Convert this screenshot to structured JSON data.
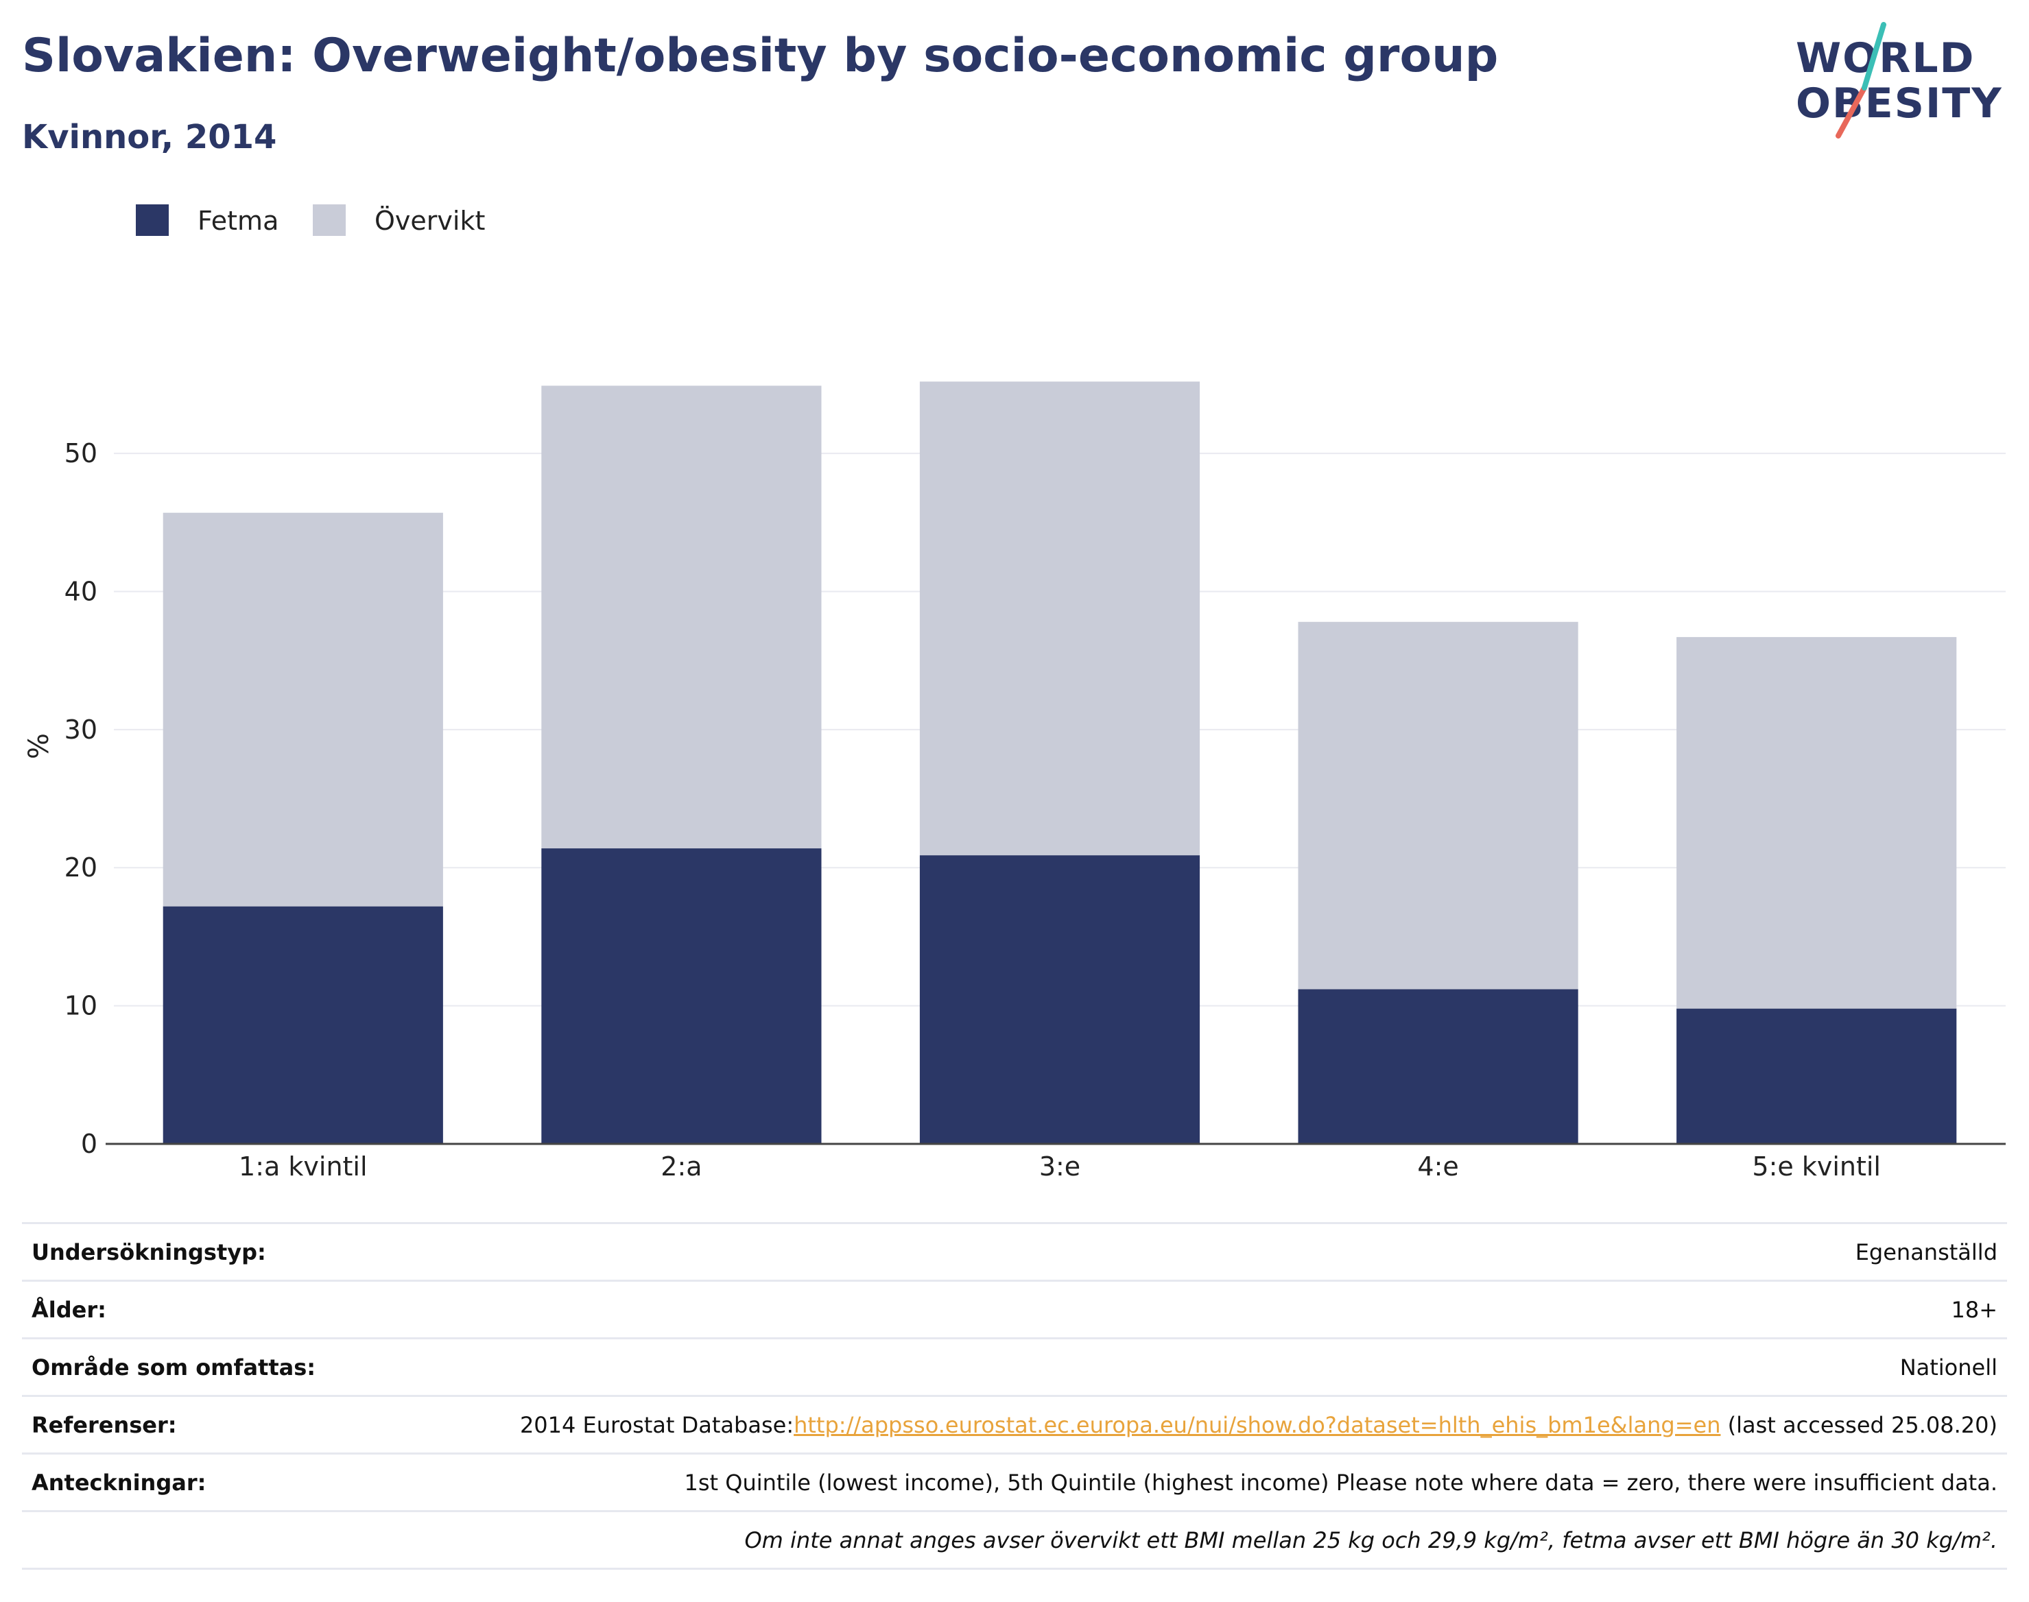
{
  "header": {
    "title": "Slovakien: Overweight/obesity by socio-economic group",
    "subtitle": "Kvinnor, 2014"
  },
  "logo": {
    "line1": "WORLD",
    "line2": "OBESITY"
  },
  "colors": {
    "title": "#2b3766",
    "fetma": "#2b3766",
    "overvikt": "#c9ccd8",
    "grid": "#e9eaf0",
    "link": "#e8a33b",
    "logo_teal": "#3bbfb6",
    "logo_coral": "#e8685a"
  },
  "legend": [
    {
      "label": "Fetma",
      "color": "#2b3766"
    },
    {
      "label": "Övervikt",
      "color": "#c9ccd8"
    }
  ],
  "chart_data": {
    "type": "bar",
    "stacked": true,
    "categories": [
      "1:a kvintil",
      "2:a",
      "3:e",
      "4:e",
      "5:e kvintil"
    ],
    "series": [
      {
        "name": "Fetma",
        "values": [
          17.2,
          21.4,
          20.9,
          11.2,
          9.8
        ]
      },
      {
        "name": "Övervikt",
        "values": [
          28.5,
          33.5,
          34.3,
          26.6,
          26.9
        ]
      }
    ],
    "ylabel": "%",
    "xlabel": "",
    "ylim": [
      0,
      58
    ],
    "yticks": [
      0,
      10,
      20,
      30,
      40,
      50
    ],
    "grid": true,
    "legend_position": "top-left"
  },
  "info_rows": [
    {
      "key": "Undersökningstyp:",
      "value": "Egenanställd"
    },
    {
      "key": "Ålder:",
      "value": "18+"
    },
    {
      "key": "Område som omfattas:",
      "value": "Nationell"
    },
    {
      "key": "Referenser:",
      "value_prefix": "2014 Eurostat Database:",
      "link": "http://appsso.eurostat.ec.europa.eu/nui/show.do?dataset=hlth_ehis_bm1e&lang=en",
      "value_suffix": " (last accessed 25.08.20)"
    },
    {
      "key": "Anteckningar:",
      "value": "1st Quintile (lowest income), 5th Quintile (highest income) Please note where data = zero, there were insufficient data."
    },
    {
      "key": "",
      "value": "Om inte annat anges avser övervikt ett BMI mellan 25 kg och 29,9 kg/m², fetma avser ett BMI högre än 30 kg/m²."
    }
  ]
}
